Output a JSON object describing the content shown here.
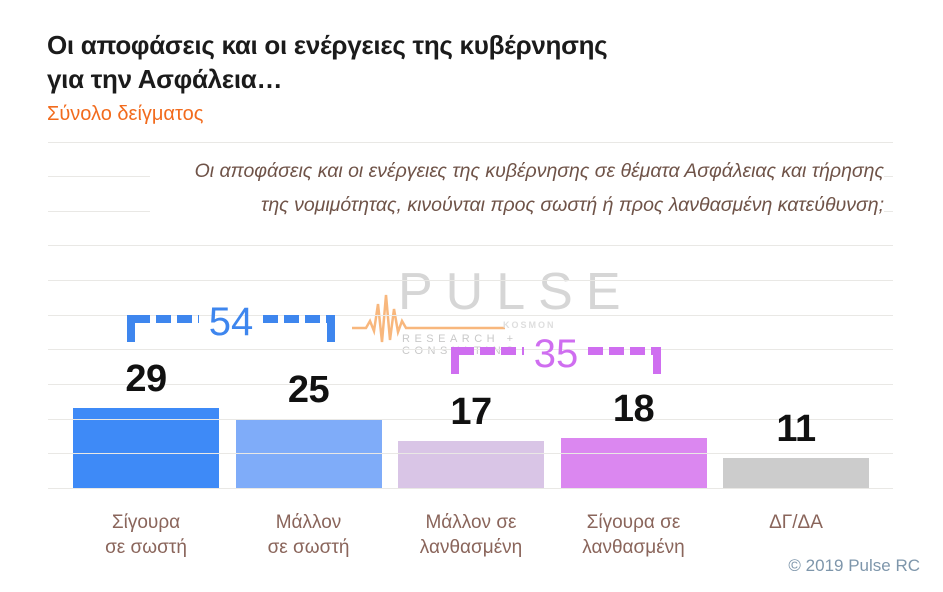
{
  "header": {
    "title_lines": [
      "Οι αποφάσεις και οι ενέργειες της κυβέρνησης",
      "για την Ασφάλεια…"
    ],
    "subtitle": "Σύνολο δείγματος",
    "title_color": "#1b1b1b",
    "subtitle_color": "#f26b1d"
  },
  "question_lines": [
    "Οι αποφάσεις και οι ενέργειες της κυβέρνησης σε θέματα Ασφάλειας και τήρησης",
    "της νομιμότητας, κινούνται προς σωστή ή προς λανθασμένη κατεύθυνση;"
  ],
  "watermark": {
    "brand": "PULSE",
    "sub": "KOSMON",
    "tagline": "RESEARCH + CONSULTING",
    "brand_color": "#d6d6d6",
    "accent_color": "#f7aa66"
  },
  "footer": {
    "copyright": "© 2019 Pulse RC",
    "color": "#7e96ab"
  },
  "chart_data": {
    "type": "bar",
    "title": "Οι αποφάσεις και οι ενέργειες της κυβέρνησης για την Ασφάλεια…",
    "subtitle": "Σύνολο δείγματος",
    "question": "Οι αποφάσεις και οι ενέργειες της κυβέρνησης σε θέματα Ασφάλειας και τήρησης της νομιμότητας, κινούνται προς σωστή ή προς λανθασμένη κατεύθυνση;",
    "categories": [
      "Σίγουρα σε σωστή",
      "Μάλλον σε σωστή",
      "Μάλλον σε λανθασμένη",
      "Σίγουρα σε λανθασμένη",
      "ΔΓ/ΔΑ"
    ],
    "category_lines": [
      [
        "Σίγουρα",
        "σε σωστή"
      ],
      [
        "Μάλλον",
        "σε σωστή"
      ],
      [
        "Μάλλον σε",
        "λανθασμένη"
      ],
      [
        "Σίγουρα σε",
        "λανθασμένη"
      ],
      [
        "ΔΓ/ΔΑ"
      ]
    ],
    "values": [
      29,
      25,
      17,
      18,
      11
    ],
    "bar_colors": [
      "#3e8af7",
      "#7facf9",
      "#d9c5e6",
      "#db87f0",
      "#cccccc"
    ],
    "groups": [
      {
        "label": "54",
        "value": 54,
        "bars": [
          0,
          1
        ],
        "color": "#3e86ee"
      },
      {
        "label": "35",
        "value": 35,
        "bars": [
          2,
          3
        ],
        "color": "#cf6ef0"
      }
    ],
    "unit": "%",
    "ylim": [
      0,
      100
    ],
    "grid": true,
    "legend": "none",
    "value_label_color": "#111111",
    "category_label_color": "#8a655b"
  }
}
